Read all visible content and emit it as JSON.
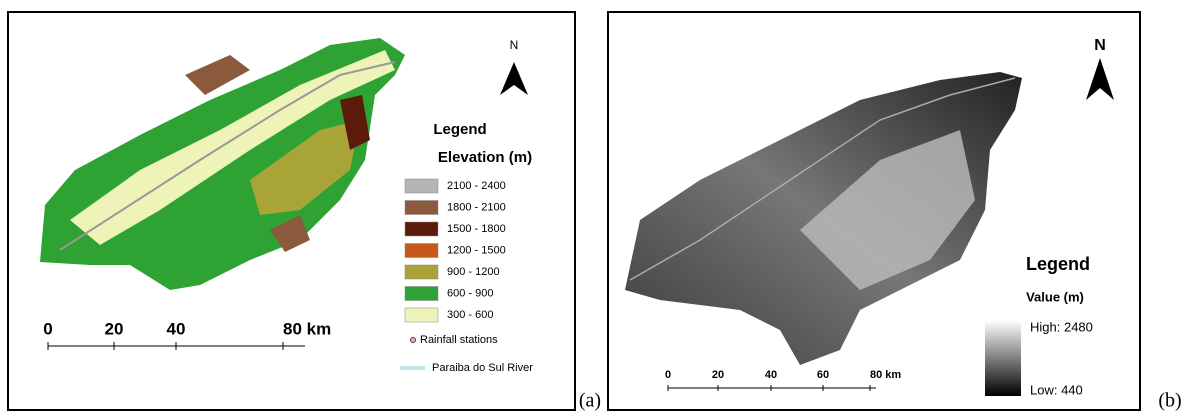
{
  "panels": [
    {
      "label": "(a)",
      "north": "N",
      "legend_title": "Legend",
      "legend_subtitle": "Elevation (m)",
      "legend_items": [
        {
          "label": "2100 - 2400",
          "color": "#b4b4b4"
        },
        {
          "label": "1800 - 2100",
          "color": "#8b5a3c"
        },
        {
          "label": "1500 - 1800",
          "color": "#5c1a0a"
        },
        {
          "label": "1200 - 1500",
          "color": "#c8571a"
        },
        {
          "label": "900 - 1200",
          "color": "#a9a437"
        },
        {
          "label": "600 - 900",
          "color": "#2ea232"
        },
        {
          "label": "300 - 600",
          "color": "#eef3b8"
        }
      ],
      "stations_label": "Rainfall stations",
      "river_label": "Paraiba do Sul River",
      "scale": [
        "0",
        "20",
        "40",
        "80 km"
      ]
    },
    {
      "label": "(b)",
      "north": "N",
      "legend_title": "Legend",
      "legend_subtitle": "Value (m)",
      "high": "High: 2480",
      "low": "Low: 440",
      "scale": [
        "0",
        "20",
        "40",
        "60",
        "80 km"
      ]
    }
  ]
}
